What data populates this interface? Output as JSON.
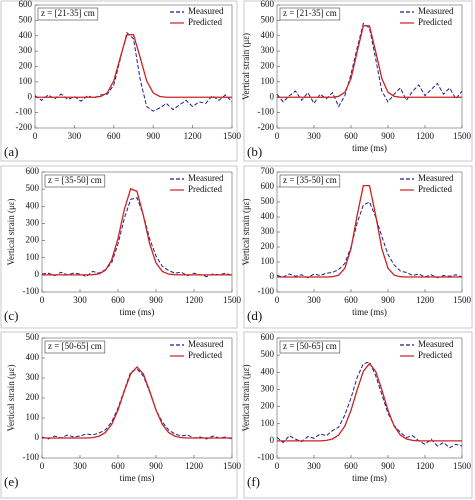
{
  "chart_data": [
    {
      "type": "line",
      "panel_label": "(a)",
      "annotation": "z = [21-35] cm",
      "x": [
        0,
        50,
        100,
        150,
        200,
        250,
        300,
        350,
        400,
        450,
        500,
        550,
        600,
        650,
        700,
        750,
        800,
        850,
        900,
        950,
        1000,
        1050,
        1100,
        1150,
        1200,
        1250,
        1300,
        1350,
        1400,
        1450,
        1500
      ],
      "series": [
        {
          "name": "Measured",
          "color": "#1f1f8f",
          "values": [
            10,
            -20,
            15,
            -10,
            20,
            -15,
            5,
            -25,
            10,
            -5,
            15,
            20,
            80,
            250,
            420,
            380,
            120,
            -60,
            -90,
            -70,
            -40,
            -80,
            -50,
            -20,
            -60,
            -30,
            -40,
            10,
            -20,
            15,
            -30
          ]
        },
        {
          "name": "Predicted",
          "color": "#cc2222",
          "values": [
            0,
            0,
            0,
            0,
            0,
            0,
            0,
            0,
            0,
            0,
            5,
            28,
            107,
            261,
            407,
            407,
            261,
            107,
            28,
            5,
            0,
            0,
            0,
            0,
            0,
            0,
            0,
            0,
            0,
            0,
            0
          ]
        }
      ],
      "xlim": [
        0,
        1500
      ],
      "xticks": [
        0,
        300,
        600,
        900,
        1200,
        1500
      ],
      "ylim": [
        -200,
        600
      ],
      "yticks": [
        -200,
        -100,
        0,
        100,
        200,
        300,
        400,
        500,
        600
      ],
      "grid": false,
      "legend": "upper right"
    },
    {
      "type": "line",
      "panel_label": "(b)",
      "annotation": "z = [21-35] cm",
      "x_label": "time (ms)",
      "y_label": "Vertical strain (με)",
      "x": [
        0,
        50,
        100,
        150,
        200,
        250,
        300,
        350,
        400,
        450,
        500,
        550,
        600,
        650,
        700,
        750,
        800,
        850,
        900,
        950,
        1000,
        1050,
        1100,
        1150,
        1200,
        1250,
        1300,
        1350,
        1400,
        1450,
        1500
      ],
      "series": [
        {
          "name": "Measured",
          "color": "#1f1f8f",
          "values": [
            20,
            -30,
            10,
            40,
            -20,
            30,
            -40,
            20,
            -10,
            30,
            -60,
            10,
            150,
            320,
            480,
            450,
            250,
            40,
            -30,
            20,
            60,
            -20,
            40,
            80,
            10,
            50,
            90,
            20,
            60,
            -10,
            40
          ]
        },
        {
          "name": "Predicted",
          "color": "#cc2222",
          "values": [
            0,
            0,
            0,
            0,
            0,
            0,
            0,
            0,
            0,
            0,
            6,
            32,
            122,
            297,
            464,
            464,
            297,
            122,
            32,
            6,
            0,
            0,
            0,
            0,
            0,
            0,
            0,
            0,
            0,
            0,
            0
          ]
        }
      ],
      "xlim": [
        0,
        1500
      ],
      "xticks": [
        0,
        300,
        600,
        900,
        1200,
        1500
      ],
      "ylim": [
        -200,
        600
      ],
      "yticks": [
        -200,
        -100,
        0,
        100,
        200,
        300,
        400,
        500,
        600
      ],
      "grid": false,
      "legend": "upper right"
    },
    {
      "type": "line",
      "panel_label": "(c)",
      "annotation": "z = [35-50] cm",
      "x_label": "time (ms)",
      "y_label": "Vertical strain (με)",
      "x": [
        0,
        50,
        100,
        150,
        200,
        250,
        300,
        350,
        400,
        450,
        500,
        550,
        600,
        650,
        700,
        750,
        800,
        850,
        900,
        950,
        1000,
        1050,
        1100,
        1150,
        1200,
        1250,
        1300,
        1350,
        1400,
        1450,
        1500
      ],
      "series": [
        {
          "name": "Measured",
          "color": "#1f1f8f",
          "values": [
            5,
            10,
            -5,
            15,
            0,
            10,
            5,
            -10,
            20,
            10,
            30,
            70,
            180,
            330,
            440,
            450,
            350,
            210,
            110,
            50,
            25,
            10,
            15,
            -5,
            10,
            0,
            -10,
            5,
            0,
            10,
            -5
          ]
        },
        {
          "name": "Predicted",
          "color": "#cc2222",
          "values": [
            0,
            0,
            0,
            0,
            0,
            0,
            0,
            0,
            1,
            6,
            26,
            87,
            212,
            381,
            502,
            487,
            347,
            181,
            70,
            20,
            4,
            1,
            0,
            0,
            0,
            0,
            0,
            0,
            0,
            0,
            0
          ]
        }
      ],
      "xlim": [
        0,
        1500
      ],
      "xticks": [
        0,
        300,
        600,
        900,
        1200,
        1500
      ],
      "ylim": [
        -100,
        600
      ],
      "yticks": [
        -100,
        0,
        100,
        200,
        300,
        400,
        500,
        600
      ],
      "grid": false,
      "legend": "upper right"
    },
    {
      "type": "line",
      "panel_label": "(d)",
      "annotation": "z = [35-50] cm",
      "x_label": "time (ms)",
      "y_label": "Vertical strain (με)",
      "x": [
        0,
        50,
        100,
        150,
        200,
        250,
        300,
        350,
        400,
        450,
        500,
        550,
        600,
        650,
        700,
        750,
        800,
        850,
        900,
        950,
        1000,
        1050,
        1100,
        1150,
        1200,
        1250,
        1300,
        1350,
        1400,
        1450,
        1500
      ],
      "series": [
        {
          "name": "Measured",
          "color": "#1f1f8f",
          "values": [
            10,
            0,
            20,
            5,
            15,
            -5,
            20,
            10,
            25,
            30,
            50,
            90,
            200,
            360,
            480,
            500,
            400,
            270,
            150,
            80,
            40,
            30,
            10,
            20,
            0,
            15,
            -5,
            10,
            5,
            15,
            0
          ]
        },
        {
          "name": "Predicted",
          "color": "#cc2222",
          "values": [
            0,
            0,
            0,
            0,
            0,
            0,
            0,
            0,
            0,
            2,
            12,
            59,
            189,
            412,
            609,
            609,
            412,
            189,
            59,
            12,
            2,
            0,
            0,
            0,
            0,
            0,
            0,
            0,
            0,
            0,
            0
          ]
        }
      ],
      "xlim": [
        0,
        1500
      ],
      "xticks": [
        0,
        300,
        600,
        900,
        1200,
        1500
      ],
      "ylim": [
        -100,
        700
      ],
      "yticks": [
        -100,
        0,
        100,
        200,
        300,
        400,
        500,
        600,
        700
      ],
      "grid": false,
      "legend": "upper right"
    },
    {
      "type": "line",
      "panel_label": "(e)",
      "annotation": "z = [50-65] cm",
      "x_label": "time (ms)",
      "y_label": "Vertical strain (με)",
      "x": [
        0,
        50,
        100,
        150,
        200,
        250,
        300,
        350,
        400,
        450,
        500,
        550,
        600,
        650,
        700,
        750,
        800,
        850,
        900,
        950,
        1000,
        1050,
        1100,
        1150,
        1200,
        1250,
        1300,
        1350,
        1400,
        1450,
        1500
      ],
      "series": [
        {
          "name": "Measured",
          "color": "#1f1f8f",
          "values": [
            5,
            -5,
            10,
            0,
            15,
            5,
            10,
            20,
            15,
            25,
            40,
            80,
            150,
            240,
            330,
            345,
            310,
            230,
            140,
            80,
            40,
            20,
            10,
            15,
            0,
            5,
            -5,
            10,
            0,
            5,
            -5
          ]
        },
        {
          "name": "Predicted",
          "color": "#cc2222",
          "values": [
            0,
            0,
            0,
            0,
            0,
            0,
            0,
            0,
            2,
            9,
            27,
            68,
            140,
            235,
            320,
            355,
            320,
            235,
            140,
            68,
            27,
            9,
            2,
            0,
            0,
            0,
            0,
            0,
            0,
            0,
            0
          ]
        }
      ],
      "xlim": [
        0,
        1500
      ],
      "xticks": [
        0,
        300,
        600,
        900,
        1200,
        1500
      ],
      "ylim": [
        -100,
        500
      ],
      "yticks": [
        -100,
        0,
        100,
        200,
        300,
        400,
        500
      ],
      "grid": false,
      "legend": "upper right"
    },
    {
      "type": "line",
      "panel_label": "(f)",
      "annotation": "z = [50-65] cm",
      "x_label": "time (ms)",
      "y_label": "Vertical strain (με)",
      "x": [
        0,
        50,
        100,
        150,
        200,
        250,
        300,
        350,
        400,
        450,
        500,
        550,
        600,
        650,
        700,
        750,
        800,
        850,
        900,
        950,
        1000,
        1050,
        1100,
        1150,
        1200,
        1250,
        1300,
        1350,
        1400,
        1450,
        1500
      ],
      "series": [
        {
          "name": "Measured",
          "color": "#1f1f8f",
          "values": [
            20,
            -10,
            30,
            10,
            -5,
            25,
            15,
            40,
            30,
            60,
            80,
            150,
            250,
            370,
            450,
            460,
            380,
            270,
            160,
            90,
            50,
            20,
            30,
            0,
            -20,
            10,
            -30,
            -10,
            -40,
            -20,
            -30
          ]
        },
        {
          "name": "Predicted",
          "color": "#cc2222",
          "values": [
            0,
            0,
            0,
            0,
            0,
            0,
            0,
            0,
            3,
            11,
            34,
            86,
            178,
            298,
            406,
            450,
            406,
            298,
            178,
            86,
            34,
            11,
            3,
            0,
            0,
            0,
            0,
            0,
            0,
            0,
            0
          ]
        }
      ],
      "xlim": [
        0,
        1500
      ],
      "xticks": [
        0,
        300,
        600,
        900,
        1200,
        1500
      ],
      "ylim": [
        -100,
        600
      ],
      "yticks": [
        -100,
        0,
        100,
        200,
        300,
        400,
        500,
        600
      ],
      "grid": false,
      "legend": "upper right"
    }
  ]
}
